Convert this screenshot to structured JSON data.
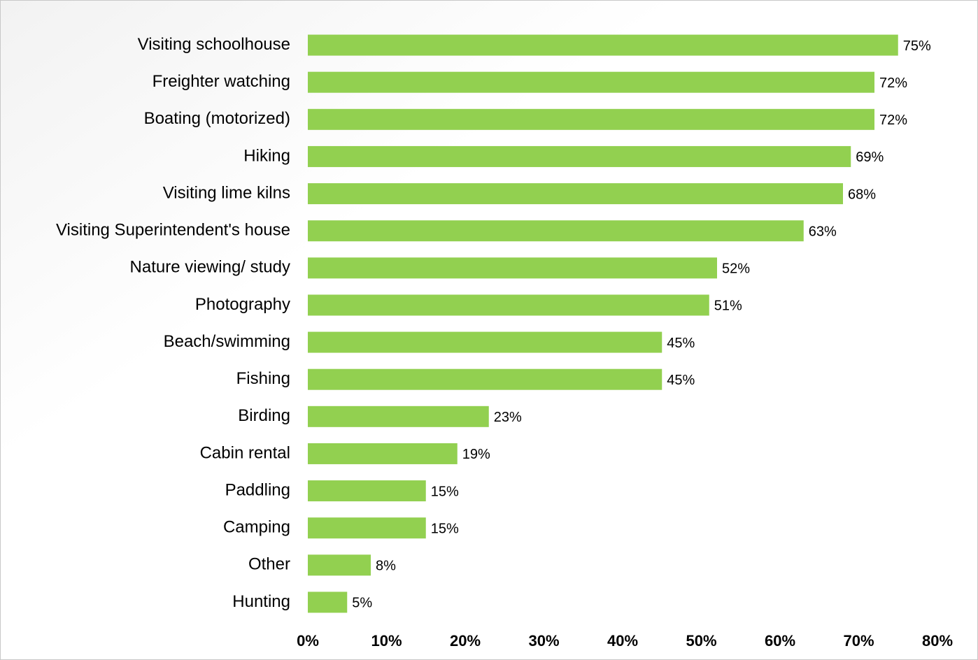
{
  "chart_data": {
    "type": "bar",
    "orientation": "horizontal",
    "categories": [
      "Visiting schoolhouse",
      "Freighter watching",
      "Boating (motorized)",
      "Hiking",
      "Visiting lime kilns",
      "Visiting Superintendent's house",
      "Nature viewing/ study",
      "Photography",
      "Beach/swimming",
      "Fishing",
      "Birding",
      "Cabin rental",
      "Paddling",
      "Camping",
      "Other",
      "Hunting"
    ],
    "values": [
      75,
      72,
      72,
      69,
      68,
      63,
      52,
      51,
      45,
      45,
      23,
      19,
      15,
      15,
      8,
      5
    ],
    "value_labels": [
      "75%",
      "72%",
      "72%",
      "69%",
      "68%",
      "63%",
      "52%",
      "51%",
      "45%",
      "45%",
      "23%",
      "19%",
      "15%",
      "15%",
      "8%",
      "5%"
    ],
    "color": "#92d050",
    "xlim": [
      0,
      80
    ],
    "xticks": [
      {
        "value": 0,
        "label": "0%"
      },
      {
        "value": 10,
        "label": "10%"
      },
      {
        "value": 20,
        "label": "20%"
      },
      {
        "value": 30,
        "label": "30%"
      },
      {
        "value": 40,
        "label": "40%"
      },
      {
        "value": 50,
        "label": "50%"
      },
      {
        "value": 60,
        "label": "60%"
      },
      {
        "value": 70,
        "label": "70%"
      },
      {
        "value": 80,
        "label": "80%"
      }
    ],
    "grid": false
  }
}
